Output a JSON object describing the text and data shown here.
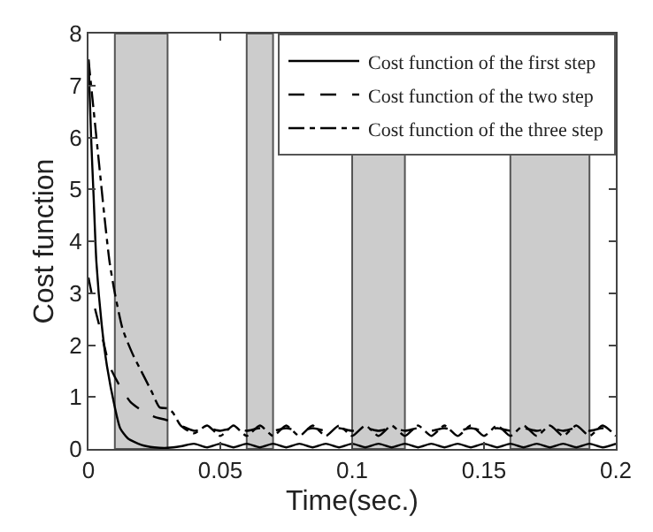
{
  "chart_data": {
    "type": "line",
    "xlabel": "Time(sec.)",
    "ylabel": "Cost function",
    "xlim": [
      0,
      0.2
    ],
    "ylim": [
      0,
      8
    ],
    "xticks": [
      0,
      0.05,
      0.1,
      0.15,
      0.2
    ],
    "yticks": [
      0,
      1,
      2,
      3,
      4,
      5,
      6,
      7,
      8
    ],
    "grid": false,
    "legend": "top right",
    "series": [
      {
        "name": "Cost function of the first step",
        "color": "#000000",
        "line_style": "solid",
        "x": [
          0,
          0.001,
          0.002,
          0.003,
          0.005,
          0.007,
          0.01,
          0.012,
          0.015,
          0.02,
          0.025,
          0.03,
          0.035,
          0.04,
          0.045,
          0.05,
          0.055,
          0.06,
          0.065,
          0.07,
          0.075,
          0.08,
          0.085,
          0.09,
          0.095,
          0.1,
          0.105,
          0.11,
          0.115,
          0.12,
          0.125,
          0.13,
          0.135,
          0.14,
          0.145,
          0.15,
          0.155,
          0.16,
          0.165,
          0.17,
          0.175,
          0.18,
          0.185,
          0.19,
          0.195,
          0.2
        ],
        "values": [
          7.5,
          6,
          4.8,
          3.6,
          2.4,
          1.6,
          0.8,
          0.4,
          0.2,
          0.08,
          0.03,
          0.02,
          0.05,
          0.1,
          0.03,
          0.1,
          0.03,
          0.1,
          0.03,
          0.1,
          0.03,
          0.1,
          0.03,
          0.1,
          0.03,
          0.1,
          0.03,
          0.1,
          0.03,
          0.1,
          0.03,
          0.1,
          0.03,
          0.1,
          0.03,
          0.1,
          0.03,
          0.1,
          0.03,
          0.1,
          0.03,
          0.1,
          0.03,
          0.1,
          0.03,
          0.1
        ]
      },
      {
        "name": "Cost function of the two step",
        "color": "#000000",
        "line_style": "dashed",
        "x": [
          0,
          0.002,
          0.005,
          0.008,
          0.012,
          0.016,
          0.02,
          0.025,
          0.03,
          0.035,
          0.04,
          0.045,
          0.05,
          0.055,
          0.06,
          0.065,
          0.07,
          0.075,
          0.08,
          0.085,
          0.09,
          0.095,
          0.1,
          0.105,
          0.11,
          0.115,
          0.12,
          0.125,
          0.13,
          0.135,
          0.14,
          0.145,
          0.15,
          0.155,
          0.16,
          0.165,
          0.17,
          0.175,
          0.18,
          0.185,
          0.19,
          0.195,
          0.2
        ],
        "values": [
          3.3,
          2.8,
          2.2,
          1.6,
          1.2,
          0.9,
          0.75,
          0.62,
          0.55,
          0.45,
          0.35,
          0.4,
          0.35,
          0.4,
          0.35,
          0.4,
          0.35,
          0.4,
          0.35,
          0.4,
          0.35,
          0.4,
          0.35,
          0.4,
          0.35,
          0.4,
          0.35,
          0.4,
          0.35,
          0.4,
          0.35,
          0.4,
          0.35,
          0.4,
          0.35,
          0.4,
          0.35,
          0.4,
          0.35,
          0.4,
          0.35,
          0.4,
          0.35
        ]
      },
      {
        "name": "Cost function of the three step",
        "color": "#000000",
        "line_style": "dashdot",
        "x": [
          0,
          0.002,
          0.004,
          0.006,
          0.008,
          0.01,
          0.013,
          0.017,
          0.02,
          0.024,
          0.027,
          0.03,
          0.032,
          0.035,
          0.04,
          0.045,
          0.05,
          0.055,
          0.06,
          0.065,
          0.07,
          0.075,
          0.08,
          0.085,
          0.09,
          0.095,
          0.1,
          0.105,
          0.11,
          0.115,
          0.12,
          0.125,
          0.13,
          0.135,
          0.14,
          0.145,
          0.15,
          0.155,
          0.16,
          0.165,
          0.17,
          0.175,
          0.18,
          0.185,
          0.19,
          0.195,
          0.2
        ],
        "values": [
          7.5,
          6.5,
          5.5,
          4.5,
          3.6,
          3.0,
          2.3,
          1.8,
          1.5,
          1.1,
          0.8,
          0.78,
          0.7,
          0.45,
          0.3,
          0.45,
          0.25,
          0.45,
          0.25,
          0.45,
          0.25,
          0.45,
          0.25,
          0.45,
          0.25,
          0.45,
          0.25,
          0.45,
          0.25,
          0.45,
          0.25,
          0.45,
          0.25,
          0.45,
          0.25,
          0.45,
          0.25,
          0.45,
          0.25,
          0.45,
          0.25,
          0.45,
          0.25,
          0.45,
          0.25,
          0.45,
          0.25
        ]
      }
    ],
    "bands": [
      {
        "axis": "x",
        "from": 0.01,
        "to": 0.03,
        "color": "#cccccc"
      },
      {
        "axis": "x",
        "from": 0.06,
        "to": 0.07,
        "color": "#cccccc"
      },
      {
        "axis": "x",
        "from": 0.1,
        "to": 0.12,
        "color": "#cccccc"
      },
      {
        "axis": "x",
        "from": 0.16,
        "to": 0.19,
        "color": "#cccccc"
      }
    ]
  }
}
